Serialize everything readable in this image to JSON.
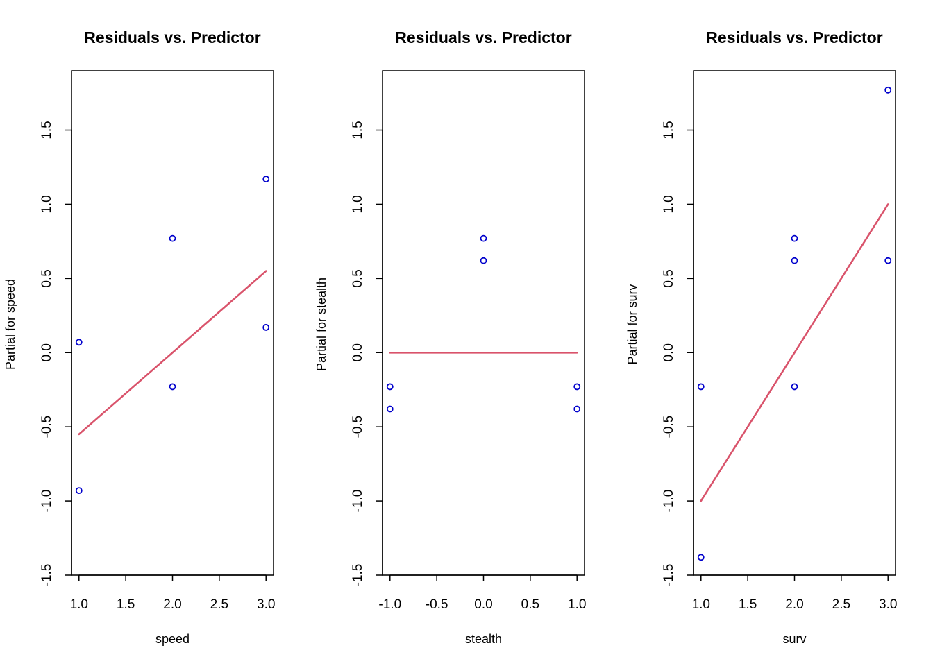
{
  "chart_data": [
    {
      "type": "scatter",
      "title": "Residuals vs. Predictor",
      "xlabel": "speed",
      "ylabel": "Partial for speed",
      "xlim": [
        0.92,
        3.08
      ],
      "ylim": [
        -1.5,
        1.9
      ],
      "xticks": [
        1.0,
        1.5,
        2.0,
        2.5,
        3.0
      ],
      "xtick_labels": [
        "1.0",
        "1.5",
        "2.0",
        "2.5",
        "3.0"
      ],
      "yticks": [
        -1.5,
        -1.0,
        -0.5,
        0.0,
        0.5,
        1.0,
        1.5
      ],
      "ytick_labels": [
        "-1.5",
        "-1.0",
        "-0.5",
        "0.0",
        "0.5",
        "1.0",
        "1.5"
      ],
      "grid": false,
      "points": [
        {
          "x": 1.0,
          "y": 0.07
        },
        {
          "x": 1.0,
          "y": -0.93
        },
        {
          "x": 2.0,
          "y": 0.77
        },
        {
          "x": 2.0,
          "y": -0.23
        },
        {
          "x": 3.0,
          "y": 1.17
        },
        {
          "x": 3.0,
          "y": 0.17
        }
      ],
      "fit_line": {
        "x": [
          1.0,
          3.0
        ],
        "y": [
          -0.55,
          0.55
        ]
      },
      "point_color": "#0000cc",
      "line_color": "#d9536b"
    },
    {
      "type": "scatter",
      "title": "Residuals vs. Predictor",
      "xlabel": "stealth",
      "ylabel": "Partial for stealth",
      "xlim": [
        -1.08,
        1.08
      ],
      "ylim": [
        -1.5,
        1.9
      ],
      "xticks": [
        -1.0,
        -0.5,
        0.0,
        0.5,
        1.0
      ],
      "xtick_labels": [
        "-1.0",
        "-0.5",
        "0.0",
        "0.5",
        "1.0"
      ],
      "yticks": [
        -1.5,
        -1.0,
        -0.5,
        0.0,
        0.5,
        1.0,
        1.5
      ],
      "ytick_labels": [
        "-1.5",
        "-1.0",
        "-0.5",
        "0.0",
        "0.5",
        "1.0",
        "1.5"
      ],
      "grid": false,
      "points": [
        {
          "x": -1.0,
          "y": -0.23
        },
        {
          "x": -1.0,
          "y": -0.38
        },
        {
          "x": 0.0,
          "y": 0.77
        },
        {
          "x": 0.0,
          "y": 0.62
        },
        {
          "x": 1.0,
          "y": -0.23
        },
        {
          "x": 1.0,
          "y": -0.38
        }
      ],
      "fit_line": {
        "x": [
          -1.0,
          1.0
        ],
        "y": [
          0.0,
          0.0
        ]
      },
      "point_color": "#0000cc",
      "line_color": "#d9536b"
    },
    {
      "type": "scatter",
      "title": "Residuals vs. Predictor",
      "xlabel": "surv",
      "ylabel": "Partial for surv",
      "xlim": [
        0.92,
        3.08
      ],
      "ylim": [
        -1.5,
        1.9
      ],
      "xticks": [
        1.0,
        1.5,
        2.0,
        2.5,
        3.0
      ],
      "xtick_labels": [
        "1.0",
        "1.5",
        "2.0",
        "2.5",
        "3.0"
      ],
      "yticks": [
        -1.5,
        -1.0,
        -0.5,
        0.0,
        0.5,
        1.0,
        1.5
      ],
      "ytick_labels": [
        "-1.5",
        "-1.0",
        "-0.5",
        "0.0",
        "0.5",
        "1.0",
        "1.5"
      ],
      "grid": false,
      "points": [
        {
          "x": 1.0,
          "y": -0.23
        },
        {
          "x": 1.0,
          "y": -1.38
        },
        {
          "x": 2.0,
          "y": 0.77
        },
        {
          "x": 2.0,
          "y": 0.62
        },
        {
          "x": 2.0,
          "y": -0.23
        },
        {
          "x": 3.0,
          "y": 1.77
        },
        {
          "x": 3.0,
          "y": 0.62
        }
      ],
      "fit_line": {
        "x": [
          1.0,
          3.0
        ],
        "y": [
          -1.0,
          1.0
        ]
      },
      "point_color": "#0000cc",
      "line_color": "#d9536b"
    }
  ]
}
